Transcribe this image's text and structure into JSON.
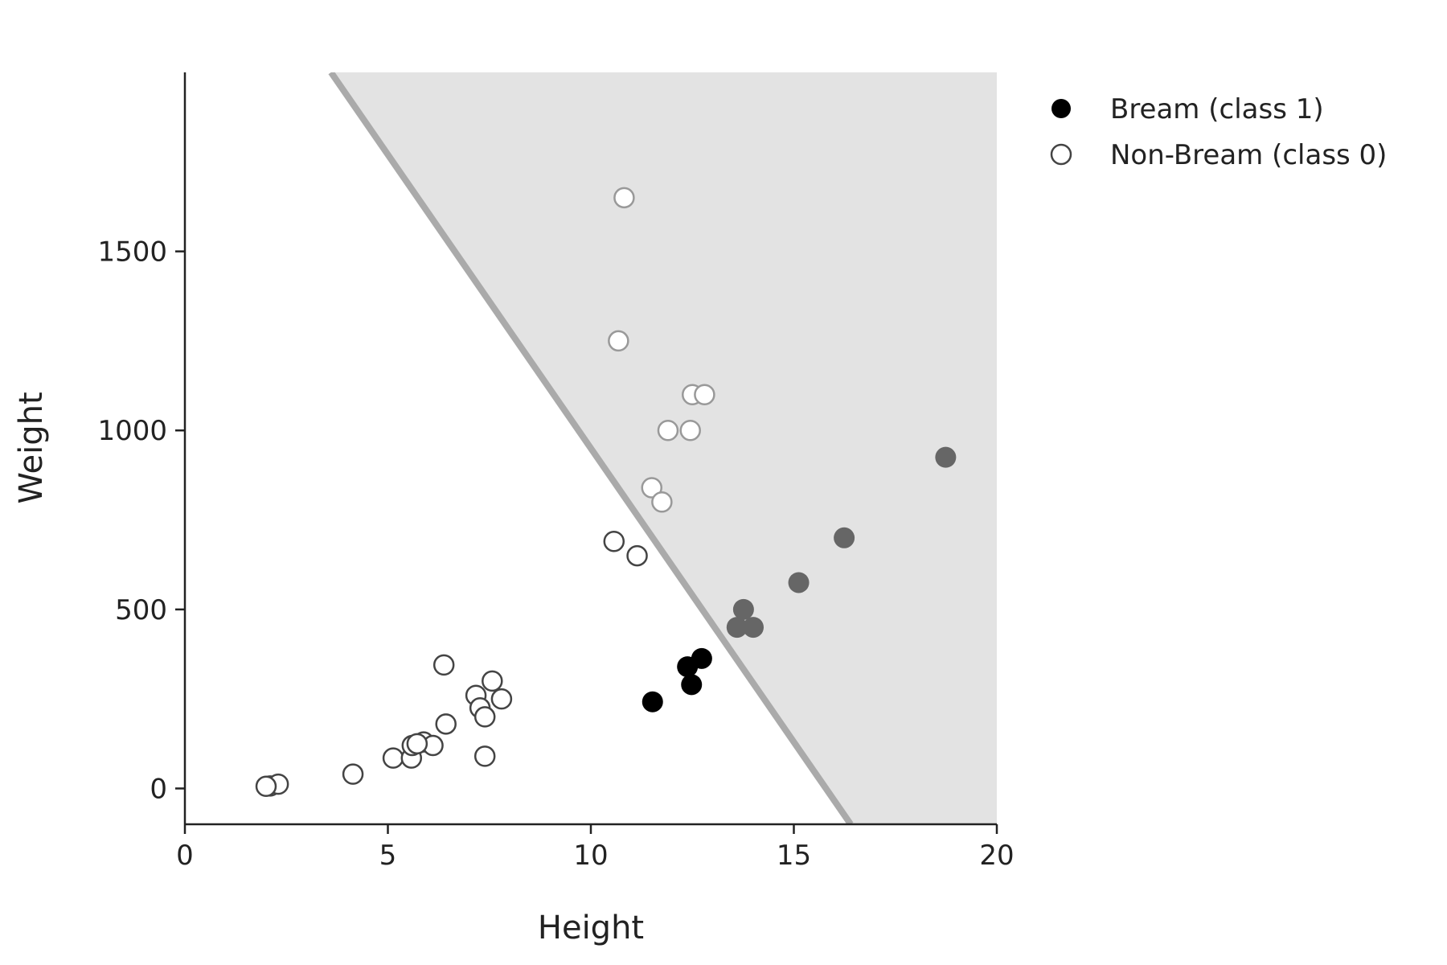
{
  "chart_data": {
    "type": "scatter",
    "xlabel": "Height",
    "ylabel": "Weight",
    "xlim": [
      0,
      20
    ],
    "ylim": [
      -100,
      2000
    ],
    "x_ticks": [
      0,
      5,
      10,
      15,
      20
    ],
    "y_ticks": [
      0,
      500,
      1000,
      1500
    ],
    "x_tick_labels": [
      "0",
      "5",
      "10",
      "15",
      "20"
    ],
    "y_tick_labels": [
      "0",
      "500",
      "1000",
      "1500"
    ],
    "grid": false,
    "legend_position": "top-right",
    "decision_boundary": {
      "points": [
        [
          3.6,
          2000
        ],
        [
          16.4,
          -100
        ]
      ],
      "shaded_side": "right",
      "line_color": "#aaaaaa",
      "region_color": "#e3e3e3"
    },
    "series": [
      {
        "name": "Bream (class 1)",
        "marker": "filled",
        "points": [
          {
            "x": 11.52,
            "y": 242,
            "highlight": false
          },
          {
            "x": 12.48,
            "y": 290,
            "highlight": false
          },
          {
            "x": 12.38,
            "y": 340,
            "highlight": false
          },
          {
            "x": 12.73,
            "y": 363,
            "highlight": false
          },
          {
            "x": 13.6,
            "y": 450,
            "highlight": true
          },
          {
            "x": 14.0,
            "y": 450,
            "highlight": true
          },
          {
            "x": 13.76,
            "y": 500,
            "highlight": true
          },
          {
            "x": 15.12,
            "y": 575,
            "highlight": true
          },
          {
            "x": 16.24,
            "y": 700,
            "highlight": true
          },
          {
            "x": 18.74,
            "y": 925,
            "highlight": true
          }
        ]
      },
      {
        "name": "Non-Bream (class 0)",
        "marker": "open",
        "points": [
          {
            "x": 2.1,
            "y": 7,
            "highlight": false
          },
          {
            "x": 2.3,
            "y": 12,
            "highlight": false
          },
          {
            "x": 2.0,
            "y": 6,
            "highlight": false
          },
          {
            "x": 4.14,
            "y": 40,
            "highlight": false
          },
          {
            "x": 5.13,
            "y": 85,
            "highlight": false
          },
          {
            "x": 5.58,
            "y": 85,
            "highlight": false
          },
          {
            "x": 5.6,
            "y": 120,
            "highlight": false
          },
          {
            "x": 5.88,
            "y": 130,
            "highlight": false
          },
          {
            "x": 6.11,
            "y": 120,
            "highlight": false
          },
          {
            "x": 5.72,
            "y": 125,
            "highlight": false
          },
          {
            "x": 6.43,
            "y": 180,
            "highlight": false
          },
          {
            "x": 6.38,
            "y": 345,
            "highlight": false
          },
          {
            "x": 7.17,
            "y": 260,
            "highlight": false
          },
          {
            "x": 7.27,
            "y": 225,
            "highlight": false
          },
          {
            "x": 7.39,
            "y": 200,
            "highlight": false
          },
          {
            "x": 7.57,
            "y": 300,
            "highlight": false
          },
          {
            "x": 7.8,
            "y": 250,
            "highlight": false
          },
          {
            "x": 7.39,
            "y": 90,
            "highlight": false
          },
          {
            "x": 10.57,
            "y": 690,
            "highlight": false
          },
          {
            "x": 11.14,
            "y": 650,
            "highlight": false
          },
          {
            "x": 10.82,
            "y": 1650,
            "highlight": true
          },
          {
            "x": 10.68,
            "y": 1250,
            "highlight": true
          },
          {
            "x": 12.5,
            "y": 1100,
            "highlight": true
          },
          {
            "x": 12.8,
            "y": 1100,
            "highlight": true
          },
          {
            "x": 11.9,
            "y": 1000,
            "highlight": true
          },
          {
            "x": 12.45,
            "y": 1000,
            "highlight": true
          },
          {
            "x": 11.5,
            "y": 840,
            "highlight": true
          },
          {
            "x": 11.75,
            "y": 800,
            "highlight": true
          }
        ]
      }
    ],
    "colors": {
      "axis": "#222222",
      "filled_marker": "#000000",
      "filled_marker_in_region": "#666666",
      "open_marker_stroke": "#444444",
      "open_marker_stroke_in_region": "#999999",
      "open_marker_fill": "#ffffff"
    }
  }
}
